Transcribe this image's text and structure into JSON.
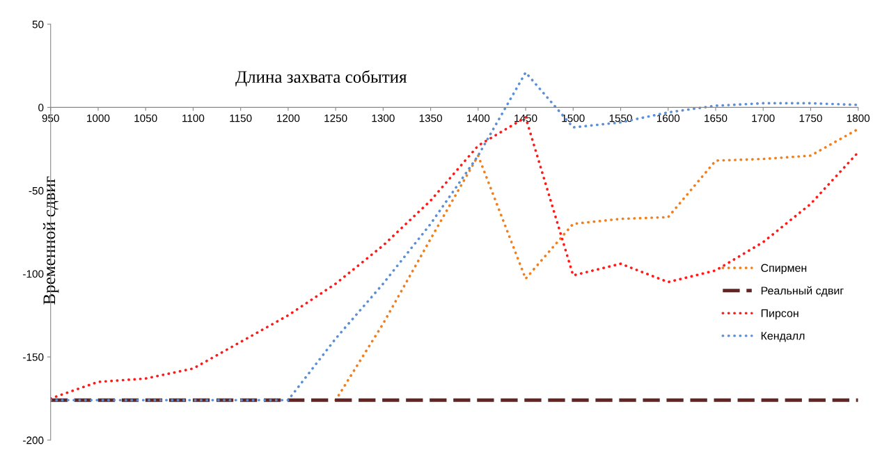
{
  "chart_data": {
    "type": "line",
    "xlabel": "Длина захвата события",
    "ylabel": "Временной сдвиг",
    "x": [
      950,
      1000,
      1050,
      1100,
      1150,
      1200,
      1250,
      1300,
      1350,
      1400,
      1450,
      1500,
      1550,
      1600,
      1650,
      1700,
      1750,
      1800
    ],
    "series": [
      {
        "name": "Спирмен",
        "color": "#f07f1e",
        "line_style": "dotted",
        "values": [
          null,
          null,
          null,
          null,
          null,
          null,
          -176,
          -130,
          -79,
          -29,
          -103,
          -70,
          -67,
          -66,
          -32,
          -31,
          -29,
          -13
        ]
      },
      {
        "name": "Реальный сдвиг",
        "color": "#632523",
        "line_style": "dashed",
        "values": [
          -176,
          -176,
          -176,
          -176,
          -176,
          -176,
          -176,
          -176,
          -176,
          -176,
          -176,
          -176,
          -176,
          -176,
          -176,
          -176,
          -176,
          -176
        ]
      },
      {
        "name": "Пирсон",
        "color": "#ff1a1a",
        "line_style": "dotted",
        "values": [
          -175,
          -165,
          -163,
          -157,
          -141,
          -125,
          -106,
          -83,
          -56,
          -23,
          -6,
          -101,
          -94,
          -105,
          -98,
          -81,
          -58,
          -27
        ]
      },
      {
        "name": "Кендалл",
        "color": "#5b8fd6",
        "line_style": "dotted",
        "values": [
          -176,
          -176,
          -176,
          -176,
          -176,
          -176,
          -139,
          -106,
          -70,
          -29,
          21,
          -12,
          -9,
          -3,
          1,
          2.5,
          2.5,
          1.5
        ]
      }
    ],
    "xlim": [
      950,
      1800
    ],
    "xticks": [
      950,
      1000,
      1050,
      1100,
      1150,
      1200,
      1250,
      1300,
      1350,
      1400,
      1450,
      1500,
      1550,
      1600,
      1650,
      1700,
      1750,
      1800
    ],
    "ylim": [
      -200,
      50
    ],
    "yticks": [
      -200,
      -150,
      -100,
      -50,
      0,
      50
    ],
    "grid": false,
    "legend": "right",
    "marker": "none"
  }
}
